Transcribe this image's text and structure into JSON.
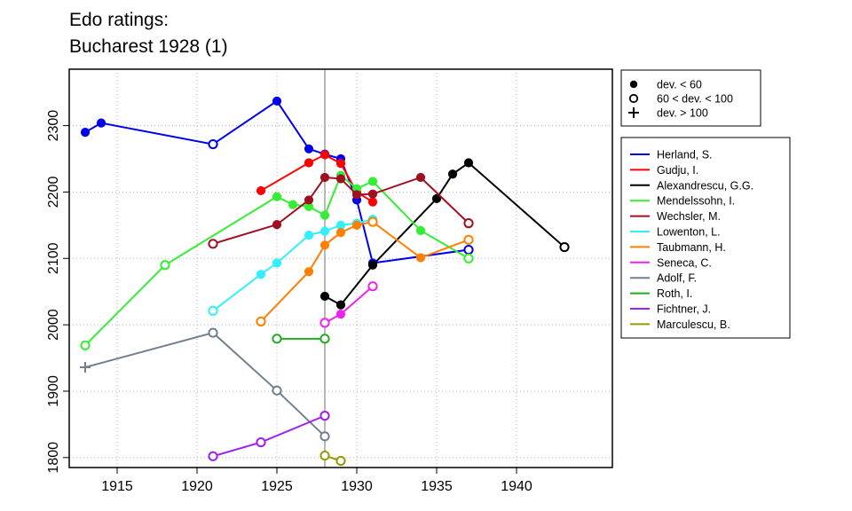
{
  "title_lines": [
    "Edo ratings:",
    "Bucharest 1928 (1)"
  ],
  "chart_data": {
    "type": "line",
    "xlim": [
      1912,
      1946
    ],
    "ylim": [
      1785,
      2385
    ],
    "x_ticks": [
      1915,
      1920,
      1925,
      1930,
      1935,
      1940
    ],
    "y_ticks": [
      1800,
      1900,
      2000,
      2100,
      2200,
      2300
    ],
    "grid": true,
    "reference_line_x": 1928,
    "symbol_legend": [
      {
        "label": "dev. < 60",
        "symbol": "filled-circle"
      },
      {
        "label": "60 < dev. < 100",
        "symbol": "open-circle"
      },
      {
        "label": "dev. > 100",
        "symbol": "plus"
      }
    ],
    "series": [
      {
        "name": "Herland, S.",
        "color": "#0000EE",
        "points": [
          [
            1913,
            2290,
            "f"
          ],
          [
            1914,
            2304,
            "f"
          ],
          [
            1921,
            2272,
            "o"
          ],
          [
            1925,
            2337,
            "f"
          ],
          [
            1927,
            2265,
            "f"
          ],
          [
            1928,
            2257,
            "f"
          ],
          [
            1929,
            2250,
            "f"
          ],
          [
            1930,
            2188,
            "f"
          ],
          [
            1931,
            2093,
            "f"
          ],
          [
            1937,
            2113,
            "o"
          ]
        ]
      },
      {
        "name": "Gudju, I.",
        "color": "#FF0000",
        "points": [
          [
            1924,
            2202,
            "f"
          ],
          [
            1927,
            2244,
            "f"
          ],
          [
            1928,
            2256,
            "f"
          ],
          [
            1929,
            2243,
            "f"
          ],
          [
            1930,
            2200,
            "f"
          ],
          [
            1931,
            2185,
            "f"
          ]
        ]
      },
      {
        "name": "Alexandrescu, G.G.",
        "color": "#000000",
        "points": [
          [
            1928,
            2043,
            "f"
          ],
          [
            1929,
            2030,
            "f"
          ],
          [
            1931,
            2090,
            "f"
          ],
          [
            1935,
            2190,
            "f"
          ],
          [
            1936,
            2227,
            "f"
          ],
          [
            1937,
            2244,
            "f"
          ],
          [
            1943,
            2117,
            "o"
          ]
        ]
      },
      {
        "name": "Mendelssohn, I.",
        "color": "#33EE33",
        "points": [
          [
            1913,
            1969,
            "o"
          ],
          [
            1918,
            2090,
            "o"
          ],
          [
            1925,
            2193,
            "f"
          ],
          [
            1926,
            2181,
            "f"
          ],
          [
            1927,
            2178,
            "f"
          ],
          [
            1928,
            2165,
            "f"
          ],
          [
            1929,
            2225,
            "f"
          ],
          [
            1930,
            2205,
            "f"
          ],
          [
            1931,
            2216,
            "f"
          ],
          [
            1934,
            2142,
            "f"
          ],
          [
            1937,
            2100,
            "o"
          ]
        ]
      },
      {
        "name": "Wechsler, M.",
        "color": "#A01020",
        "points": [
          [
            1921,
            2122,
            "o"
          ],
          [
            1925,
            2151,
            "f"
          ],
          [
            1927,
            2188,
            "f"
          ],
          [
            1928,
            2222,
            "f"
          ],
          [
            1929,
            2220,
            "f"
          ],
          [
            1930,
            2196,
            "f"
          ],
          [
            1931,
            2197,
            "f"
          ],
          [
            1934,
            2222,
            "f"
          ],
          [
            1937,
            2153,
            "o"
          ]
        ]
      },
      {
        "name": "Lowenton, L.",
        "color": "#33EEFF",
        "points": [
          [
            1921,
            2021,
            "o"
          ],
          [
            1924,
            2076,
            "f"
          ],
          [
            1925,
            2093,
            "f"
          ],
          [
            1927,
            2135,
            "f"
          ],
          [
            1928,
            2141,
            "f"
          ],
          [
            1929,
            2150,
            "f"
          ],
          [
            1930,
            2153,
            "f"
          ],
          [
            1931,
            2159,
            "f"
          ]
        ]
      },
      {
        "name": "Taubmann, H.",
        "color": "#FF7F00",
        "points": [
          [
            1924,
            2005,
            "o"
          ],
          [
            1927,
            2080,
            "f"
          ],
          [
            1928,
            2120,
            "f"
          ],
          [
            1929,
            2139,
            "f"
          ],
          [
            1930,
            2150,
            "f"
          ],
          [
            1931,
            2155,
            "o"
          ],
          [
            1934,
            2101,
            "f"
          ],
          [
            1937,
            2128,
            "o"
          ]
        ]
      },
      {
        "name": "Seneca, C.",
        "color": "#EE22EE",
        "points": [
          [
            1928,
            2003,
            "o"
          ],
          [
            1929,
            2016,
            "f"
          ],
          [
            1931,
            2058,
            "o"
          ]
        ]
      },
      {
        "name": "Adolf, F.",
        "color": "#708090",
        "points": [
          [
            1913,
            1936,
            "p"
          ],
          [
            1921,
            1988,
            "o"
          ],
          [
            1925,
            1901,
            "o"
          ],
          [
            1928,
            1832,
            "o"
          ]
        ]
      },
      {
        "name": "Roth, I.",
        "color": "#22AA22",
        "points": [
          [
            1925,
            1979,
            "o"
          ],
          [
            1928,
            1979,
            "o"
          ]
        ]
      },
      {
        "name": "Fichtner, J.",
        "color": "#A020F0",
        "points": [
          [
            1921,
            1802,
            "o"
          ],
          [
            1924,
            1823,
            "o"
          ],
          [
            1928,
            1863,
            "o"
          ]
        ]
      },
      {
        "name": "Marculescu, B.",
        "color": "#999900",
        "points": [
          [
            1928,
            1803,
            "o"
          ],
          [
            1929,
            1795,
            "o"
          ]
        ]
      }
    ]
  }
}
